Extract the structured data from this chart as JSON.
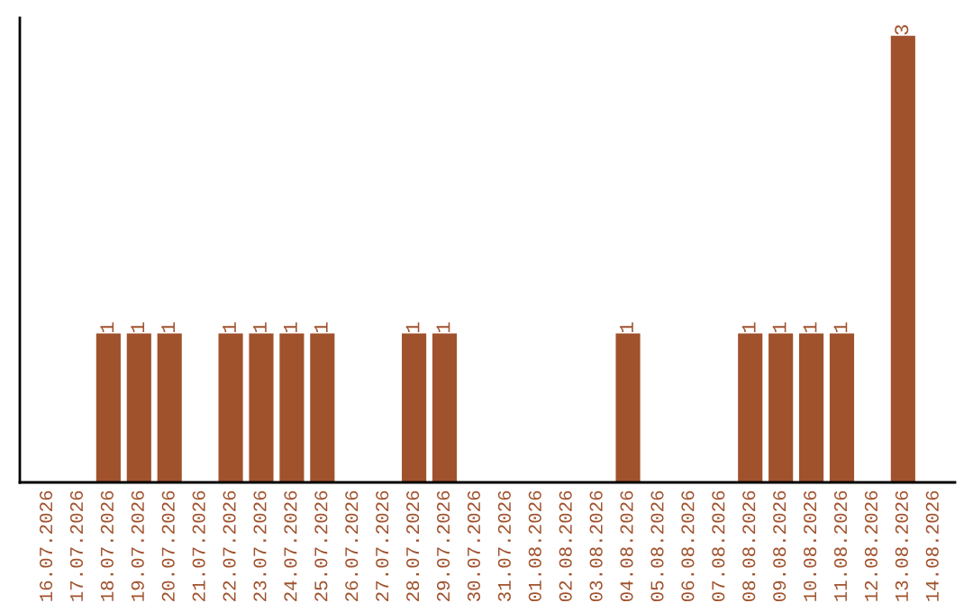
{
  "chart_data": {
    "type": "bar",
    "categories": [
      "16.07.2026",
      "17.07.2026",
      "18.07.2026",
      "19.07.2026",
      "20.07.2026",
      "21.07.2026",
      "22.07.2026",
      "23.07.2026",
      "24.07.2026",
      "25.07.2026",
      "26.07.2026",
      "27.07.2026",
      "28.07.2026",
      "29.07.2026",
      "30.07.2026",
      "31.07.2026",
      "01.08.2026",
      "02.08.2026",
      "03.08.2026",
      "04.08.2026",
      "05.08.2026",
      "06.08.2026",
      "07.08.2026",
      "08.08.2026",
      "09.08.2026",
      "10.08.2026",
      "11.08.2026",
      "12.08.2026",
      "13.08.2026",
      "14.08.2026"
    ],
    "values": [
      0,
      0,
      1,
      1,
      1,
      0,
      1,
      1,
      1,
      1,
      0,
      0,
      1,
      1,
      0,
      0,
      0,
      0,
      0,
      1,
      0,
      0,
      0,
      1,
      1,
      1,
      1,
      0,
      3,
      0
    ],
    "value_labels": [
      null,
      null,
      "1",
      "1",
      "1",
      null,
      "1",
      "1",
      "1",
      "1",
      null,
      null,
      "1",
      "1",
      null,
      null,
      null,
      null,
      null,
      "1",
      null,
      null,
      null,
      "1",
      "1",
      "1",
      "1",
      null,
      "3",
      null
    ],
    "color": "#a0522d",
    "tick_labels": "x",
    "grid": false,
    "legend": false
  }
}
